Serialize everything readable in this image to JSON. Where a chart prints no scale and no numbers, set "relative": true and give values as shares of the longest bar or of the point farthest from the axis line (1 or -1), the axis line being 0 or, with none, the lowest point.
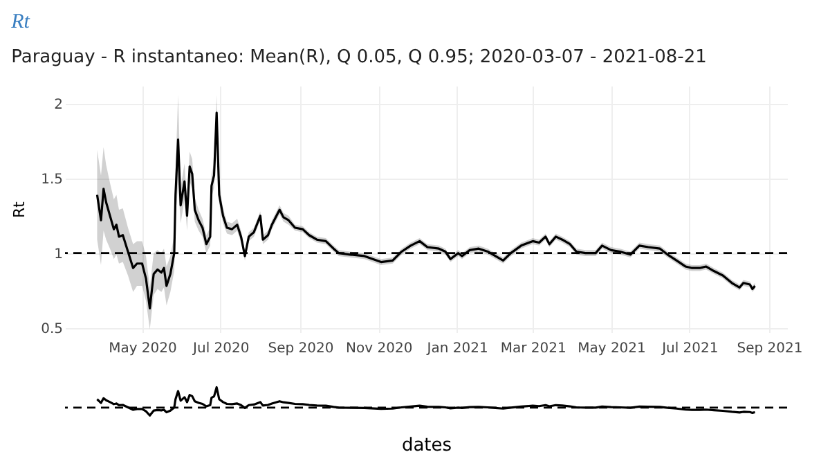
{
  "chart_data": [
    {
      "type": "line",
      "title": "Paraguay - R instantaneo: Mean(R), Q 0.05, Q 0.95;  2020-03-07 - 2021-08-21",
      "ylabel": "Rt",
      "annotations": [
        "Rt"
      ],
      "x": [
        "2020-03-27",
        "2020-03-30",
        "2020-04-01",
        "2020-04-03",
        "2020-04-06",
        "2020-04-09",
        "2020-04-11",
        "2020-04-13",
        "2020-04-16",
        "2020-04-20",
        "2020-04-24",
        "2020-04-27",
        "2020-05-01",
        "2020-05-04",
        "2020-05-07",
        "2020-05-10",
        "2020-05-13",
        "2020-05-16",
        "2020-05-18",
        "2020-05-20",
        "2020-05-23",
        "2020-05-26",
        "2020-05-27",
        "2020-05-29",
        "2020-05-31",
        "2020-06-03",
        "2020-06-05",
        "2020-06-07",
        "2020-06-09",
        "2020-06-11",
        "2020-06-14",
        "2020-06-17",
        "2020-06-20",
        "2020-06-23",
        "2020-06-24",
        "2020-06-26",
        "2020-06-28",
        "2020-06-30",
        "2020-07-03",
        "2020-07-06",
        "2020-07-10",
        "2020-07-14",
        "2020-07-17",
        "2020-07-20",
        "2020-07-23",
        "2020-07-27",
        "2020-08-01",
        "2020-08-03",
        "2020-08-07",
        "2020-08-10",
        "2020-08-16",
        "2020-08-19",
        "2020-08-23",
        "2020-08-28",
        "2020-09-03",
        "2020-09-08",
        "2020-09-14",
        "2020-09-21",
        "2020-09-27",
        "2020-10-01",
        "2020-10-10",
        "2020-10-21",
        "2020-11-03",
        "2020-11-12",
        "2020-11-19",
        "2020-11-26",
        "2020-12-03",
        "2020-12-09",
        "2020-12-18",
        "2020-12-23",
        "2020-12-27",
        "2021-01-02",
        "2021-01-05",
        "2021-01-11",
        "2021-01-18",
        "2021-01-25",
        "2021-01-31",
        "2021-02-06",
        "2021-02-12",
        "2021-02-20",
        "2021-03-01",
        "2021-03-06",
        "2021-03-11",
        "2021-03-14",
        "2021-03-19",
        "2021-03-24",
        "2021-03-30",
        "2021-04-04",
        "2021-04-11",
        "2021-04-19",
        "2021-04-24",
        "2021-05-01",
        "2021-05-08",
        "2021-05-16",
        "2021-05-23",
        "2021-05-30",
        "2021-06-08",
        "2021-06-14",
        "2021-06-21",
        "2021-06-28",
        "2021-07-03",
        "2021-07-09",
        "2021-07-14",
        "2021-07-20",
        "2021-07-27",
        "2021-08-03",
        "2021-08-09",
        "2021-08-12",
        "2021-08-17",
        "2021-08-19",
        "2021-08-21"
      ],
      "series": [
        {
          "color": "#000000",
          "values": [
            1.39,
            1.22,
            1.43,
            1.34,
            1.25,
            1.16,
            1.19,
            1.11,
            1.12,
            1.01,
            0.9,
            0.93,
            0.93,
            0.83,
            0.63,
            0.86,
            0.89,
            0.87,
            0.9,
            0.78,
            0.86,
            1.0,
            1.39,
            1.76,
            1.32,
            1.48,
            1.25,
            1.58,
            1.53,
            1.29,
            1.22,
            1.17,
            1.06,
            1.11,
            1.45,
            1.52,
            1.94,
            1.39,
            1.25,
            1.17,
            1.16,
            1.19,
            1.11,
            0.98,
            1.11,
            1.14,
            1.25,
            1.09,
            1.12,
            1.19,
            1.29,
            1.24,
            1.22,
            1.17,
            1.16,
            1.12,
            1.09,
            1.08,
            1.03,
            1.0,
            0.99,
            0.98,
            0.94,
            0.95,
            1.01,
            1.05,
            1.08,
            1.04,
            1.03,
            1.01,
            0.96,
            1.0,
            0.98,
            1.02,
            1.03,
            1.01,
            0.98,
            0.95,
            1.0,
            1.05,
            1.08,
            1.07,
            1.11,
            1.06,
            1.11,
            1.09,
            1.06,
            1.01,
            1.0,
            1.0,
            1.05,
            1.02,
            1.01,
            0.99,
            1.05,
            1.04,
            1.03,
            0.99,
            0.95,
            0.91,
            0.9,
            0.9,
            0.91,
            0.88,
            0.85,
            0.8,
            0.77,
            0.8,
            0.79,
            0.76,
            0.78
          ],
          "lower": [
            1.09,
            0.92,
            1.15,
            1.09,
            1.03,
            0.96,
            0.99,
            0.93,
            0.94,
            0.85,
            0.74,
            0.78,
            0.78,
            0.68,
            0.49,
            0.72,
            0.76,
            0.74,
            0.77,
            0.65,
            0.74,
            0.88,
            1.24,
            1.46,
            1.2,
            1.36,
            1.15,
            1.48,
            1.43,
            1.21,
            1.15,
            1.11,
            1.0,
            1.05,
            1.37,
            1.44,
            1.82,
            1.33,
            1.2,
            1.13,
            1.12,
            1.15,
            1.07,
            0.95,
            1.08,
            1.11,
            1.22,
            1.06,
            1.09,
            1.16,
            1.26,
            1.21,
            1.19,
            1.15,
            1.14,
            1.1,
            1.07,
            1.06,
            1.01,
            0.98,
            0.97,
            0.96,
            0.92,
            0.93,
            0.99,
            1.03,
            1.06,
            1.02,
            1.01,
            0.99,
            0.94,
            0.98,
            0.96,
            1.0,
            1.01,
            0.99,
            0.96,
            0.93,
            0.98,
            1.03,
            1.06,
            1.05,
            1.09,
            1.04,
            1.09,
            1.07,
            1.04,
            0.99,
            0.98,
            0.98,
            1.03,
            1.0,
            0.99,
            0.97,
            1.03,
            1.02,
            1.01,
            0.97,
            0.93,
            0.89,
            0.88,
            0.88,
            0.89,
            0.86,
            0.83,
            0.78,
            0.75,
            0.78,
            0.77,
            0.74,
            0.76
          ],
          "upper": [
            1.69,
            1.52,
            1.71,
            1.59,
            1.47,
            1.36,
            1.39,
            1.29,
            1.3,
            1.17,
            1.06,
            1.08,
            1.08,
            0.98,
            0.77,
            1.0,
            1.02,
            1.0,
            1.03,
            0.91,
            0.98,
            1.12,
            1.54,
            2.06,
            1.44,
            1.6,
            1.35,
            1.68,
            1.63,
            1.37,
            1.29,
            1.23,
            1.12,
            1.17,
            1.53,
            1.6,
            2.06,
            1.45,
            1.3,
            1.21,
            1.2,
            1.23,
            1.15,
            1.01,
            1.14,
            1.17,
            1.28,
            1.12,
            1.15,
            1.22,
            1.32,
            1.27,
            1.25,
            1.19,
            1.18,
            1.14,
            1.11,
            1.1,
            1.05,
            1.02,
            1.01,
            1.0,
            0.96,
            0.97,
            1.03,
            1.07,
            1.1,
            1.06,
            1.05,
            1.03,
            0.98,
            1.02,
            1.0,
            1.04,
            1.05,
            1.03,
            1.0,
            0.97,
            1.02,
            1.07,
            1.1,
            1.09,
            1.13,
            1.08,
            1.13,
            1.11,
            1.08,
            1.03,
            1.02,
            1.02,
            1.07,
            1.04,
            1.03,
            1.01,
            1.07,
            1.06,
            1.05,
            1.01,
            0.97,
            0.93,
            0.92,
            0.92,
            0.93,
            0.9,
            0.87,
            0.82,
            0.79,
            0.82,
            0.81,
            0.78,
            0.8
          ]
        }
      ],
      "xlim": [
        "2020-03-02",
        "2021-09-15"
      ],
      "xticks": [
        {
          "value": "2020-05-01",
          "label": "May 2020"
        },
        {
          "value": "2020-07-01",
          "label": "Jul 2020"
        },
        {
          "value": "2020-09-01",
          "label": "Sep 2020"
        },
        {
          "value": "2020-11-01",
          "label": "Nov 2020"
        },
        {
          "value": "2021-01-01",
          "label": "Jan 2021"
        },
        {
          "value": "2021-03-01",
          "label": "Mar 2021"
        },
        {
          "value": "2021-05-01",
          "label": "May 2021"
        },
        {
          "value": "2021-07-01",
          "label": "Jul 2021"
        },
        {
          "value": "2021-09-01",
          "label": "Sep 2021"
        }
      ],
      "ylim": [
        0.47,
        2.12
      ],
      "yticks": [
        0.5,
        1,
        1.5,
        2
      ],
      "grid": true,
      "ref_lines": [
        {
          "axis": "y",
          "value": 1,
          "color": "#000000",
          "line_style": "dashed"
        }
      ]
    },
    {
      "type": "line",
      "xlabel": "dates",
      "relative": true,
      "x": [
        "2020-03-27",
        "2020-03-30",
        "2020-04-01",
        "2020-04-03",
        "2020-04-06",
        "2020-04-09",
        "2020-04-11",
        "2020-04-13",
        "2020-04-16",
        "2020-04-20",
        "2020-04-24",
        "2020-04-27",
        "2020-05-01",
        "2020-05-04",
        "2020-05-07",
        "2020-05-10",
        "2020-05-13",
        "2020-05-16",
        "2020-05-18",
        "2020-05-20",
        "2020-05-23",
        "2020-05-26",
        "2020-05-27",
        "2020-05-29",
        "2020-05-31",
        "2020-06-03",
        "2020-06-05",
        "2020-06-07",
        "2020-06-09",
        "2020-06-11",
        "2020-06-14",
        "2020-06-17",
        "2020-06-20",
        "2020-06-23",
        "2020-06-24",
        "2020-06-26",
        "2020-06-28",
        "2020-06-30",
        "2020-07-03",
        "2020-07-06",
        "2020-07-10",
        "2020-07-14",
        "2020-07-17",
        "2020-07-20",
        "2020-07-23",
        "2020-07-27",
        "2020-08-01",
        "2020-08-03",
        "2020-08-07",
        "2020-08-10",
        "2020-08-16",
        "2020-08-19",
        "2020-08-23",
        "2020-08-28",
        "2020-09-03",
        "2020-09-08",
        "2020-09-14",
        "2020-09-21",
        "2020-09-27",
        "2020-10-01",
        "2020-10-10",
        "2020-10-21",
        "2020-11-03",
        "2020-11-12",
        "2020-11-19",
        "2020-11-26",
        "2020-12-03",
        "2020-12-09",
        "2020-12-18",
        "2020-12-23",
        "2020-12-27",
        "2021-01-02",
        "2021-01-05",
        "2021-01-11",
        "2021-01-18",
        "2021-01-25",
        "2021-01-31",
        "2021-02-06",
        "2021-02-12",
        "2021-02-20",
        "2021-03-01",
        "2021-03-06",
        "2021-03-11",
        "2021-03-14",
        "2021-03-19",
        "2021-03-24",
        "2021-03-30",
        "2021-04-04",
        "2021-04-11",
        "2021-04-19",
        "2021-04-24",
        "2021-05-01",
        "2021-05-08",
        "2021-05-16",
        "2021-05-23",
        "2021-05-30",
        "2021-06-08",
        "2021-06-14",
        "2021-06-21",
        "2021-06-28",
        "2021-07-03",
        "2021-07-09",
        "2021-07-14",
        "2021-07-20",
        "2021-07-27",
        "2021-08-03",
        "2021-08-09",
        "2021-08-12",
        "2021-08-17",
        "2021-08-19",
        "2021-08-21"
      ],
      "series": [
        {
          "color": "#000000",
          "values": [
            0.41,
            0.23,
            0.46,
            0.36,
            0.27,
            0.17,
            0.2,
            0.12,
            0.13,
            0.01,
            -0.11,
            -0.07,
            -0.07,
            -0.18,
            -0.39,
            -0.15,
            -0.12,
            -0.14,
            -0.11,
            -0.23,
            -0.15,
            0,
            0.41,
            0.81,
            0.34,
            0.51,
            0.27,
            0.62,
            0.56,
            0.31,
            0.23,
            0.18,
            0.06,
            0.12,
            0.48,
            0.55,
            1,
            0.41,
            0.27,
            0.18,
            0.17,
            0.2,
            0.12,
            -0.02,
            0.12,
            0.15,
            0.27,
            0.1,
            0.13,
            0.2,
            0.31,
            0.26,
            0.23,
            0.18,
            0.17,
            0.13,
            0.1,
            0.09,
            0.03,
            0,
            -0.01,
            -0.02,
            -0.06,
            -0.05,
            0.01,
            0.05,
            0.09,
            0.04,
            0.03,
            0.01,
            -0.04,
            0,
            -0.02,
            0.02,
            0.03,
            0.01,
            -0.02,
            -0.05,
            0,
            0.05,
            0.09,
            0.07,
            0.12,
            0.06,
            0.12,
            0.1,
            0.06,
            0.01,
            0,
            0,
            0.05,
            0.02,
            0.01,
            -0.01,
            0.05,
            0.04,
            0.03,
            -0.01,
            -0.05,
            -0.1,
            -0.11,
            -0.11,
            -0.1,
            -0.13,
            -0.16,
            -0.21,
            -0.24,
            -0.21,
            -0.22,
            -0.26,
            -0.23
          ]
        }
      ],
      "xlim": [
        "2020-03-02",
        "2021-09-15"
      ],
      "ref_lines": [
        {
          "axis": "y",
          "value": 0,
          "color": "#000000",
          "line_style": "dashed"
        }
      ]
    }
  ]
}
